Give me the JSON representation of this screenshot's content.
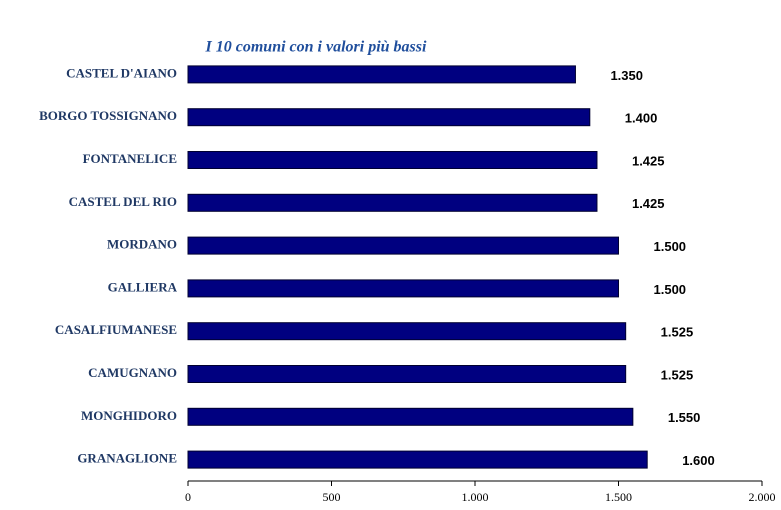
{
  "chart_data": {
    "type": "hbar",
    "title": "I 10 comuni con i valori più bassi",
    "categories": [
      "CASTEL D'AIANO",
      "BORGO TOSSIGNANO",
      "FONTANELICE",
      "CASTEL DEL RIO",
      "MORDANO",
      "GALLIERA",
      "CASALFIUMANESE",
      "CAMUGNANO",
      "MONGHIDORO",
      "GRANAGLIONE"
    ],
    "values": [
      1350,
      1400,
      1425,
      1425,
      1500,
      1500,
      1525,
      1525,
      1550,
      1600
    ],
    "value_labels": [
      "1.350",
      "1.400",
      "1.425",
      "1.425",
      "1.500",
      "1.500",
      "1.525",
      "1.525",
      "1.550",
      "1.600"
    ],
    "color": "#000080",
    "xlim": [
      0,
      2000
    ],
    "xticks": [
      0,
      500,
      {
        "value": 1000,
        "label": "1.000"
      },
      {
        "value": 1500,
        "label": "1.500"
      },
      {
        "value": 2000,
        "label": "2.000"
      }
    ]
  }
}
